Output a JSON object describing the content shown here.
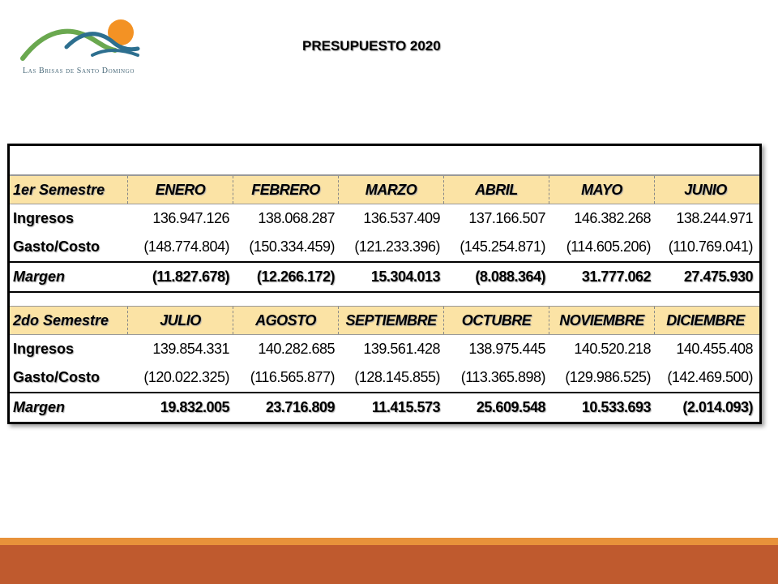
{
  "header": {
    "logo_text": "Las Brisas de Santo Domingo",
    "title": "PRESUPUESTO 2020"
  },
  "colors": {
    "header_fill": "#fbe3a5",
    "footer_light": "#e8923a",
    "footer_dark": "#bf5a2e",
    "logo_green": "#6aa84f",
    "logo_blue": "#2d6f8f",
    "logo_sun": "#f39224"
  },
  "semesters": [
    {
      "label": "1er Semestre",
      "months": [
        "ENERO",
        "FEBRERO",
        "MARZO",
        "ABRIL",
        "MAYO",
        "JUNIO"
      ],
      "ingresos_label": "Ingresos",
      "ingresos": [
        "136.947.126",
        "138.068.287",
        "136.537.409",
        "137.166.507",
        "146.382.268",
        "138.244.971"
      ],
      "gasto_label": "Gasto/Costo",
      "gasto": [
        "(148.774.804)",
        "(150.334.459)",
        "(121.233.396)",
        "(145.254.871)",
        "(114.605.206)",
        "(110.769.041)"
      ],
      "margen_label": "Margen",
      "margen": [
        "(11.827.678)",
        "(12.266.172)",
        "15.304.013",
        "(8.088.364)",
        "31.777.062",
        "27.475.930"
      ]
    },
    {
      "label": "2do Semestre",
      "months": [
        "JULIO",
        "AGOSTO",
        "SEPTIEMBRE",
        "OCTUBRE",
        "NOVIEMBRE",
        "DICIEMBRE"
      ],
      "ingresos_label": "Ingresos",
      "ingresos": [
        "139.854.331",
        "140.282.685",
        "139.561.428",
        "138.975.445",
        "140.520.218",
        "140.455.408"
      ],
      "gasto_label": "Gasto/Costo",
      "gasto": [
        "(120.022.325)",
        "(116.565.877)",
        "(128.145.855)",
        "(113.365.898)",
        "(129.986.525)",
        "(142.469.500)"
      ],
      "margen_label": "Margen",
      "margen": [
        "19.832.005",
        "23.716.809",
        "11.415.573",
        "25.609.548",
        "10.533.693",
        "(2.014.093)"
      ]
    }
  ]
}
